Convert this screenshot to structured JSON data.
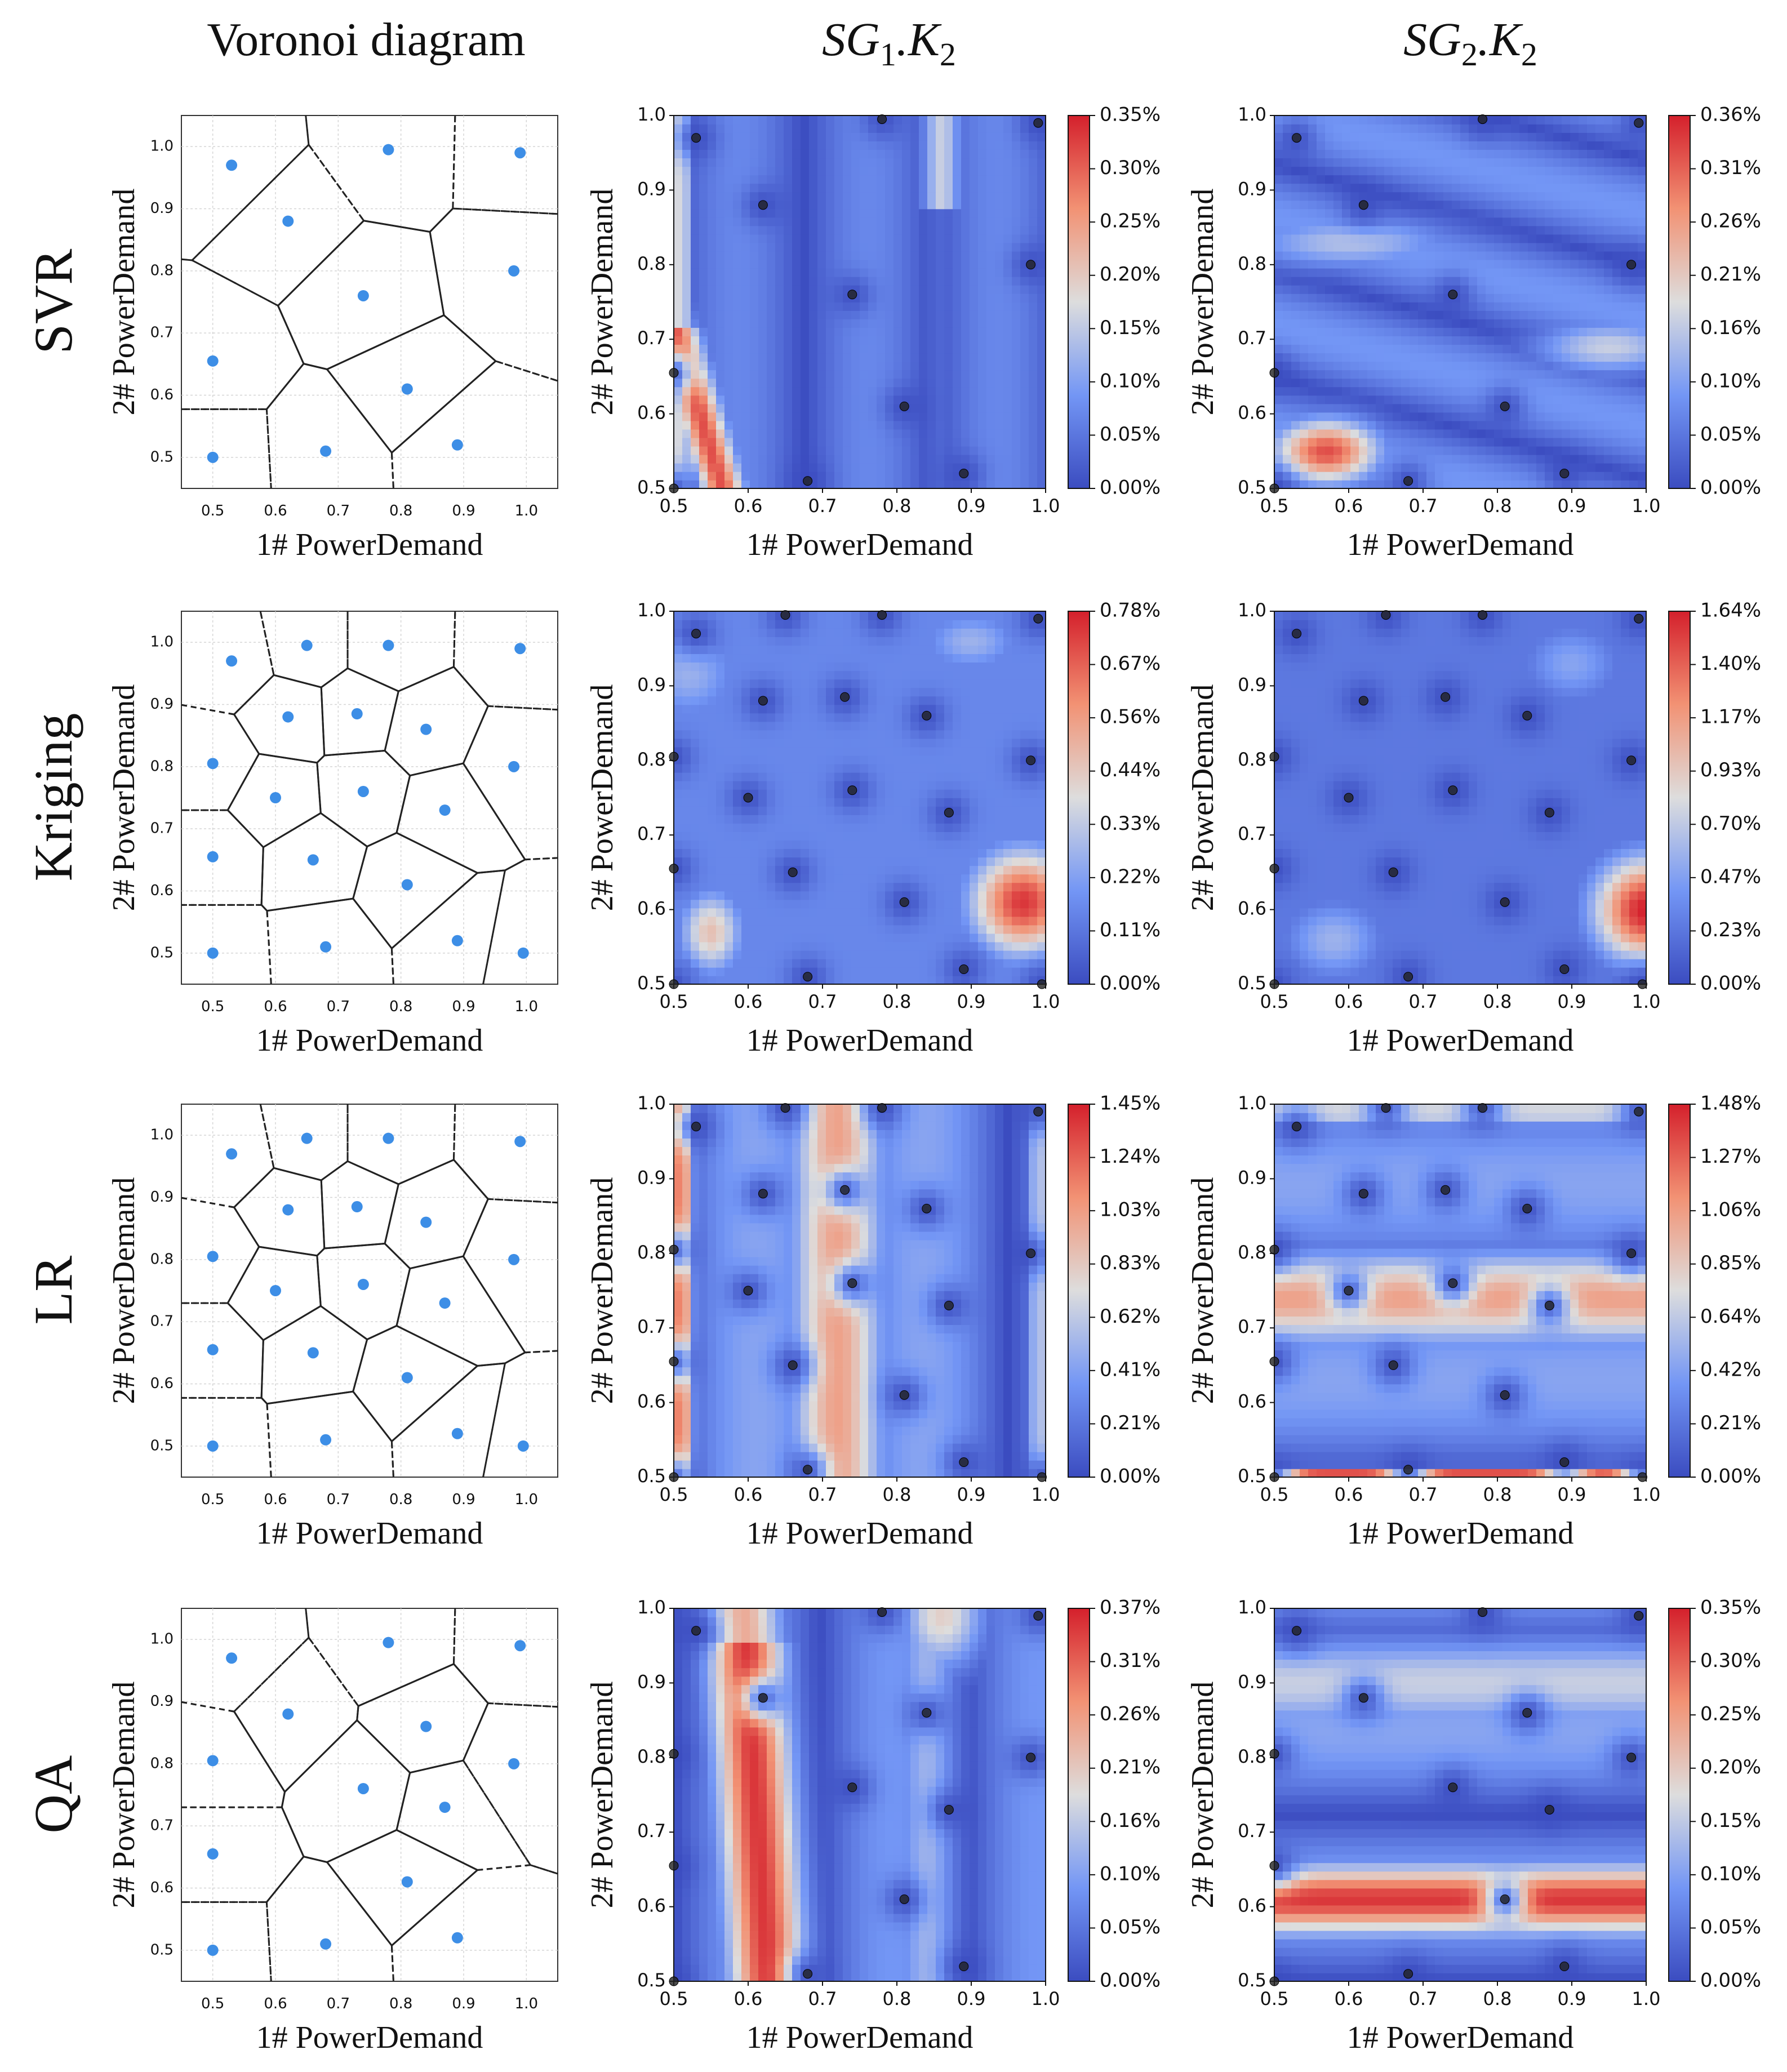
{
  "col_titles": [
    {
      "main": "Voronoi diagram",
      "sub": ""
    },
    {
      "main": "SG",
      "sub": "1",
      "tail": ".K",
      "tail_sub": "2"
    },
    {
      "main": "SG",
      "sub": "2",
      "tail": ".K",
      "tail_sub": "2"
    }
  ],
  "row_labels": [
    "SVR",
    "Kriging",
    "LR",
    "QA"
  ],
  "axis_labels": {
    "x": "1# PowerDemand",
    "y": "2# PowerDemand"
  },
  "colors": {
    "point_blue": "#3d8ee6",
    "sample_dot": "#222222",
    "cmap_low": "#3b4cc0",
    "cmap_mid": "#dddddd",
    "cmap_high": "#b40426"
  },
  "chart_data": {
    "type": "heatmap",
    "x_range": [
      0.5,
      1.0
    ],
    "y_range": [
      0.5,
      1.0
    ],
    "voronoi_x_range": [
      0.45,
      1.05
    ],
    "voronoi_y_range": [
      0.45,
      1.05
    ],
    "ticks": [
      "0.5",
      "0.6",
      "0.7",
      "0.8",
      "0.9",
      "1.0"
    ],
    "samples": [
      {
        "name": "SVR",
        "points": [
          [
            0.53,
            0.97
          ],
          [
            0.62,
            0.88
          ],
          [
            0.74,
            0.76
          ],
          [
            0.78,
            0.995
          ],
          [
            0.99,
            0.99
          ],
          [
            0.98,
            0.8
          ],
          [
            0.5,
            0.655
          ],
          [
            0.81,
            0.61
          ],
          [
            0.5,
            0.5
          ],
          [
            0.68,
            0.51
          ],
          [
            0.89,
            0.52
          ]
        ]
      },
      {
        "name": "Kriging",
        "points": [
          [
            0.53,
            0.97
          ],
          [
            0.65,
            0.995
          ],
          [
            0.78,
            0.995
          ],
          [
            0.99,
            0.99
          ],
          [
            0.62,
            0.88
          ],
          [
            0.73,
            0.885
          ],
          [
            0.84,
            0.86
          ],
          [
            0.5,
            0.805
          ],
          [
            0.98,
            0.8
          ],
          [
            0.6,
            0.75
          ],
          [
            0.74,
            0.76
          ],
          [
            0.87,
            0.73
          ],
          [
            0.5,
            0.655
          ],
          [
            0.66,
            0.65
          ],
          [
            0.81,
            0.61
          ],
          [
            0.5,
            0.5
          ],
          [
            0.68,
            0.51
          ],
          [
            0.89,
            0.52
          ],
          [
            0.995,
            0.5
          ]
        ]
      },
      {
        "name": "LR",
        "points": [
          [
            0.53,
            0.97
          ],
          [
            0.65,
            0.995
          ],
          [
            0.78,
            0.995
          ],
          [
            0.99,
            0.99
          ],
          [
            0.62,
            0.88
          ],
          [
            0.73,
            0.885
          ],
          [
            0.84,
            0.86
          ],
          [
            0.5,
            0.805
          ],
          [
            0.98,
            0.8
          ],
          [
            0.6,
            0.75
          ],
          [
            0.74,
            0.76
          ],
          [
            0.87,
            0.73
          ],
          [
            0.5,
            0.655
          ],
          [
            0.66,
            0.65
          ],
          [
            0.81,
            0.61
          ],
          [
            0.5,
            0.5
          ],
          [
            0.68,
            0.51
          ],
          [
            0.89,
            0.52
          ],
          [
            0.995,
            0.5
          ]
        ]
      },
      {
        "name": "QA",
        "points": [
          [
            0.53,
            0.97
          ],
          [
            0.78,
            0.995
          ],
          [
            0.99,
            0.99
          ],
          [
            0.62,
            0.88
          ],
          [
            0.84,
            0.86
          ],
          [
            0.5,
            0.805
          ],
          [
            0.98,
            0.8
          ],
          [
            0.74,
            0.76
          ],
          [
            0.87,
            0.73
          ],
          [
            0.5,
            0.655
          ],
          [
            0.81,
            0.61
          ],
          [
            0.5,
            0.5
          ],
          [
            0.68,
            0.51
          ],
          [
            0.89,
            0.52
          ]
        ]
      }
    ],
    "heatmaps": [
      {
        "method": "SVR",
        "target": "SG1.K2",
        "cbar_ticks": [
          "0.00%",
          "0.05%",
          "0.10%",
          "0.15%",
          "0.20%",
          "0.25%",
          "0.30%",
          "0.35%"
        ]
      },
      {
        "method": "SVR",
        "target": "SG2.K2",
        "cbar_ticks": [
          "0.00%",
          "0.05%",
          "0.10%",
          "0.16%",
          "0.21%",
          "0.26%",
          "0.31%",
          "0.36%"
        ]
      },
      {
        "method": "Kriging",
        "target": "SG1.K2",
        "cbar_ticks": [
          "0.00%",
          "0.11%",
          "0.22%",
          "0.33%",
          "0.44%",
          "0.56%",
          "0.67%",
          "0.78%"
        ]
      },
      {
        "method": "Kriging",
        "target": "SG2.K2",
        "cbar_ticks": [
          "0.00%",
          "0.23%",
          "0.47%",
          "0.70%",
          "0.93%",
          "1.17%",
          "1.40%",
          "1.64%"
        ]
      },
      {
        "method": "LR",
        "target": "SG1.K2",
        "cbar_ticks": [
          "0.00%",
          "0.21%",
          "0.41%",
          "0.62%",
          "0.83%",
          "1.03%",
          "1.24%",
          "1.45%"
        ]
      },
      {
        "method": "LR",
        "target": "SG2.K2",
        "cbar_ticks": [
          "0.00%",
          "0.21%",
          "0.42%",
          "0.64%",
          "0.85%",
          "1.06%",
          "1.27%",
          "1.48%"
        ]
      },
      {
        "method": "QA",
        "target": "SG1.K2",
        "cbar_ticks": [
          "0.00%",
          "0.05%",
          "0.10%",
          "0.16%",
          "0.21%",
          "0.26%",
          "0.31%",
          "0.37%"
        ]
      },
      {
        "method": "QA",
        "target": "SG2.K2",
        "cbar_ticks": [
          "0.00%",
          "0.05%",
          "0.10%",
          "0.15%",
          "0.20%",
          "0.25%",
          "0.30%",
          "0.35%"
        ]
      }
    ]
  }
}
